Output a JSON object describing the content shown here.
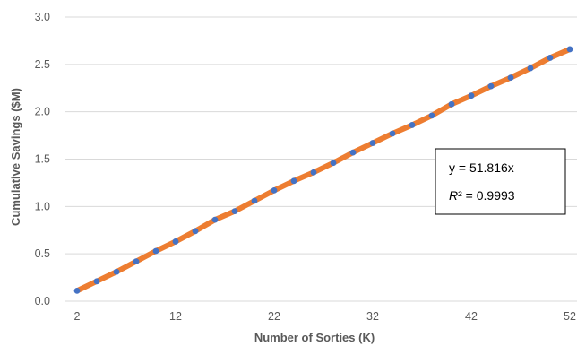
{
  "chart_data": {
    "type": "scatter",
    "xlabel": "Number of Sorties (K)",
    "ylabel": "Cumulative Savings ($M)",
    "xlim": [
      2,
      52
    ],
    "ylim": [
      0,
      3.0
    ],
    "x_ticks": [
      "2",
      "12",
      "22",
      "32",
      "42",
      "52"
    ],
    "y_ticks": [
      "0.0",
      "0.5",
      "1.0",
      "1.5",
      "2.0",
      "2.5",
      "3.0"
    ],
    "grid": "horizontal",
    "colors": {
      "trendline": "#ED7D31",
      "marker": "#4472C4",
      "grid": "#D9D9D9"
    },
    "series": [
      {
        "x": [
          2,
          4,
          6,
          8,
          10,
          12,
          14,
          16,
          18,
          20,
          22,
          24,
          26,
          28,
          30,
          32,
          34,
          36,
          38,
          40,
          42,
          44,
          46,
          48,
          50,
          52
        ],
        "values": [
          0.11,
          0.21,
          0.31,
          0.42,
          0.53,
          0.63,
          0.74,
          0.86,
          0.95,
          1.06,
          1.17,
          1.27,
          1.36,
          1.46,
          1.57,
          1.67,
          1.77,
          1.86,
          1.96,
          2.08,
          2.17,
          2.27,
          2.36,
          2.46,
          2.57,
          2.66
        ]
      }
    ],
    "trendline": {
      "equation": "y = 51.816x",
      "r2_label": "R",
      "r2_value": "² = 0.9993"
    }
  }
}
